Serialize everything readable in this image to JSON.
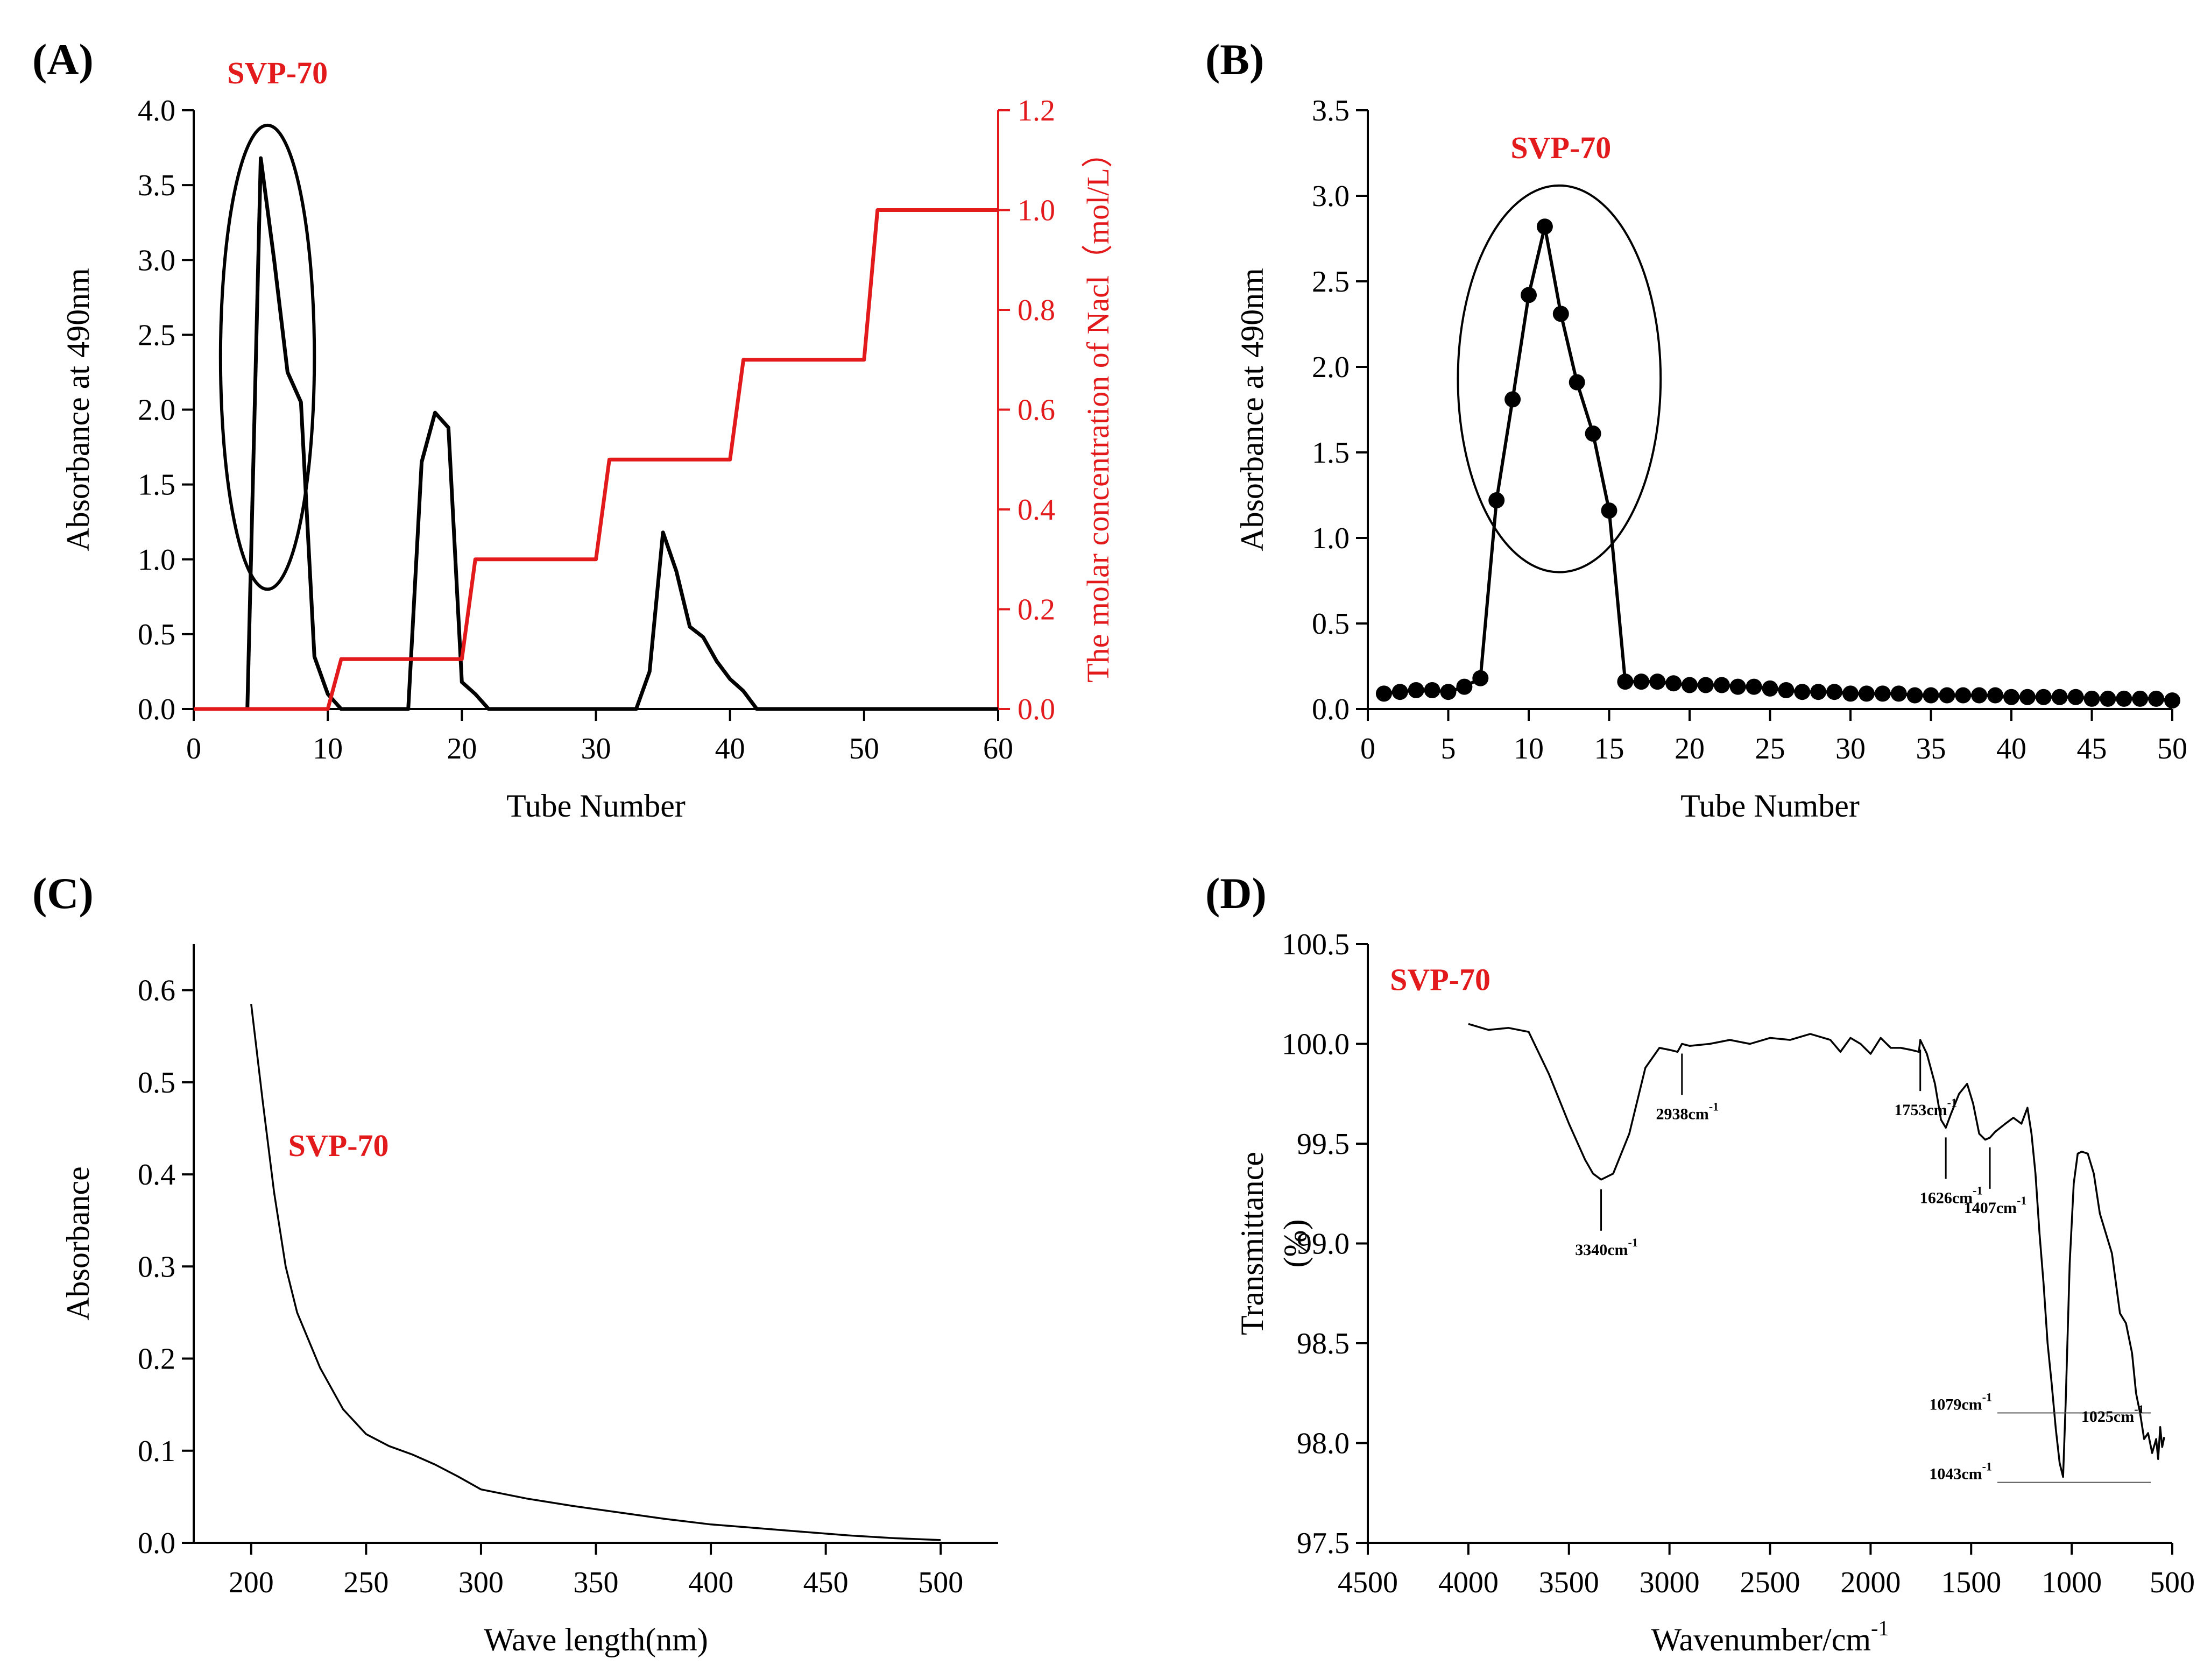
{
  "figure": {
    "accent_color": "#e31a1c",
    "line_color": "#000000"
  },
  "chart_data": [
    {
      "panel": "(A)",
      "type": "line",
      "title": "",
      "annotation": "SVP-70",
      "xlabel": "Tube Number",
      "ylabel": "Absorbance at 490nm",
      "y2label": "The molar concentration of Nacl（mol/L）",
      "xlim": [
        0,
        60
      ],
      "ylim": [
        0,
        4.0
      ],
      "y2lim": [
        0,
        1.2
      ],
      "xticks": [
        0,
        10,
        20,
        30,
        40,
        50,
        60
      ],
      "yticks": [
        0.0,
        0.5,
        1.0,
        1.5,
        2.0,
        2.5,
        3.0,
        3.5,
        4.0
      ],
      "y2ticks": [
        0.0,
        0.2,
        0.4,
        0.6,
        0.8,
        1.0,
        1.2
      ],
      "series": [
        {
          "name": "Absorbance at 490nm",
          "axis": "left",
          "x": [
            0,
            4,
            5,
            6,
            7,
            8,
            9,
            10,
            11,
            16,
            17,
            18,
            19,
            20,
            21,
            22,
            33,
            34,
            35,
            36,
            37,
            38,
            39,
            40,
            41,
            42,
            60
          ],
          "y": [
            0,
            0,
            3.68,
            3.0,
            2.25,
            2.05,
            0.35,
            0.1,
            0,
            0,
            1.65,
            1.98,
            1.88,
            0.18,
            0.1,
            0,
            0,
            0.25,
            1.18,
            0.92,
            0.55,
            0.48,
            0.32,
            0.2,
            0.12,
            0,
            0
          ]
        },
        {
          "name": "The molar concentration of Nacl",
          "axis": "right",
          "x": [
            0,
            10,
            11,
            20,
            21,
            30,
            31,
            40,
            41,
            50,
            51,
            60
          ],
          "y": [
            0,
            0,
            0.1,
            0.1,
            0.3,
            0.3,
            0.5,
            0.5,
            0.7,
            0.7,
            1.0,
            1.0
          ]
        }
      ],
      "highlight": {
        "x": [
          2,
          9
        ],
        "y": [
          0.8,
          3.9
        ]
      }
    },
    {
      "panel": "(B)",
      "type": "line",
      "title": "",
      "annotation": "SVP-70",
      "xlabel": "Tube Number",
      "ylabel": "Absorbance at 490nm",
      "xlim": [
        0,
        50
      ],
      "ylim": [
        0,
        3.5
      ],
      "xticks": [
        0,
        5,
        10,
        15,
        20,
        25,
        30,
        35,
        40,
        45,
        50
      ],
      "yticks": [
        0.0,
        0.5,
        1.0,
        1.5,
        2.0,
        2.5,
        3.0,
        3.5
      ],
      "series": [
        {
          "name": "Absorbance at 490nm",
          "markers": true,
          "x": [
            1,
            2,
            3,
            4,
            5,
            6,
            7,
            8,
            9,
            10,
            11,
            12,
            13,
            14,
            15,
            16,
            17,
            18,
            19,
            20,
            21,
            22,
            23,
            24,
            25,
            26,
            27,
            28,
            29,
            30,
            31,
            32,
            33,
            34,
            35,
            36,
            37,
            38,
            39,
            40,
            41,
            42,
            43,
            44,
            45,
            46,
            47,
            48,
            49,
            50
          ],
          "y": [
            0.09,
            0.1,
            0.11,
            0.11,
            0.1,
            0.13,
            0.18,
            1.22,
            1.81,
            2.42,
            2.82,
            2.31,
            1.91,
            1.61,
            1.16,
            0.16,
            0.16,
            0.16,
            0.15,
            0.14,
            0.14,
            0.14,
            0.13,
            0.13,
            0.12,
            0.11,
            0.1,
            0.1,
            0.1,
            0.09,
            0.09,
            0.09,
            0.09,
            0.08,
            0.08,
            0.08,
            0.08,
            0.08,
            0.08,
            0.07,
            0.07,
            0.07,
            0.07,
            0.07,
            0.06,
            0.06,
            0.06,
            0.06,
            0.06,
            0.05
          ]
        }
      ],
      "highlight": {
        "x": [
          5.6,
          18.2
        ],
        "y": [
          0.8,
          3.06
        ]
      }
    },
    {
      "panel": "(C)",
      "type": "line",
      "title": "",
      "annotation": "SVP-70",
      "xlabel": "Wave length(nm)",
      "ylabel": "Absorbance",
      "xlim": [
        175,
        525
      ],
      "ylim": [
        0,
        0.65
      ],
      "xticks": [
        200,
        250,
        300,
        350,
        400,
        450,
        500
      ],
      "yticks": [
        0.0,
        0.1,
        0.2,
        0.3,
        0.4,
        0.5,
        0.6
      ],
      "series": [
        {
          "name": "Absorbance",
          "x": [
            200,
            205,
            210,
            215,
            220,
            230,
            240,
            250,
            260,
            270,
            280,
            290,
            300,
            320,
            340,
            360,
            380,
            400,
            420,
            440,
            460,
            480,
            500
          ],
          "y": [
            0.585,
            0.48,
            0.38,
            0.3,
            0.25,
            0.19,
            0.145,
            0.118,
            0.105,
            0.096,
            0.085,
            0.072,
            0.058,
            0.048,
            0.04,
            0.033,
            0.026,
            0.02,
            0.016,
            0.012,
            0.008,
            0.005,
            0.003
          ]
        }
      ]
    },
    {
      "panel": "(D)",
      "type": "line",
      "title": "",
      "annotation": "SVP-70",
      "xlabel": "Wavenumber/cm",
      "xlabel_superscript": "-1",
      "ylabel": "Transmittance",
      "ylabel_unit": "(%)",
      "xlim": [
        4500,
        500
      ],
      "ylim": [
        97.5,
        100.5
      ],
      "xticks": [
        4500,
        4000,
        3500,
        3000,
        2500,
        2000,
        1500,
        1000,
        500
      ],
      "yticks": [
        97.5,
        98.0,
        98.5,
        99.0,
        99.5,
        100.0,
        100.5
      ],
      "series": [
        {
          "name": "Transmittance",
          "x": [
            4000,
            3900,
            3800,
            3700,
            3600,
            3500,
            3420,
            3380,
            3340,
            3280,
            3200,
            3120,
            3050,
            3000,
            2960,
            2938,
            2900,
            2800,
            2700,
            2600,
            2500,
            2400,
            2300,
            2200,
            2150,
            2100,
            2050,
            2000,
            1950,
            1900,
            1850,
            1800,
            1760,
            1753,
            1720,
            1680,
            1650,
            1626,
            1600,
            1560,
            1520,
            1490,
            1460,
            1430,
            1407,
            1380,
            1330,
            1290,
            1250,
            1220,
            1200,
            1180,
            1160,
            1140,
            1120,
            1100,
            1079,
            1060,
            1043,
            1030,
            1010,
            990,
            970,
            950,
            920,
            890,
            860,
            830,
            800,
            760,
            730,
            700,
            680,
            660,
            640,
            620,
            600,
            580,
            570,
            560,
            550,
            540
          ],
          "y": [
            100.1,
            100.07,
            100.08,
            100.06,
            99.85,
            99.6,
            99.42,
            99.35,
            99.32,
            99.35,
            99.55,
            99.88,
            99.98,
            99.97,
            99.96,
            100.0,
            99.99,
            100.0,
            100.02,
            100.0,
            100.03,
            100.02,
            100.05,
            100.02,
            99.96,
            100.03,
            100.0,
            99.95,
            100.03,
            99.98,
            99.98,
            99.97,
            99.96,
            100.02,
            99.95,
            99.8,
            99.62,
            99.58,
            99.65,
            99.75,
            99.8,
            99.7,
            99.55,
            99.52,
            99.53,
            99.56,
            99.6,
            99.63,
            99.6,
            99.68,
            99.55,
            99.35,
            99.05,
            98.8,
            98.5,
            98.3,
            98.07,
            97.9,
            97.83,
            98.2,
            98.9,
            99.3,
            99.45,
            99.46,
            99.45,
            99.35,
            99.15,
            99.05,
            98.95,
            98.65,
            98.6,
            98.45,
            98.25,
            98.15,
            98.02,
            98.05,
            97.95,
            98.02,
            97.92,
            98.08,
            97.98,
            98.03
          ]
        }
      ],
      "peaks": [
        {
          "label": "3340cm",
          "x": 3340,
          "direction": "below"
        },
        {
          "label": "2938cm",
          "x": 2938,
          "direction": "below"
        },
        {
          "label": "1753cm",
          "x": 1753,
          "direction": "below"
        },
        {
          "label": "1626cm",
          "x": 1626,
          "direction": "below"
        },
        {
          "label": "1407cm",
          "x": 1407,
          "direction": "below"
        },
        {
          "label": "1079cm",
          "x": 1079,
          "direction": "guide"
        },
        {
          "label": "1043cm",
          "x": 1043,
          "direction": "guide"
        },
        {
          "label": "1025cm",
          "x": 560,
          "direction": "side"
        }
      ]
    }
  ]
}
